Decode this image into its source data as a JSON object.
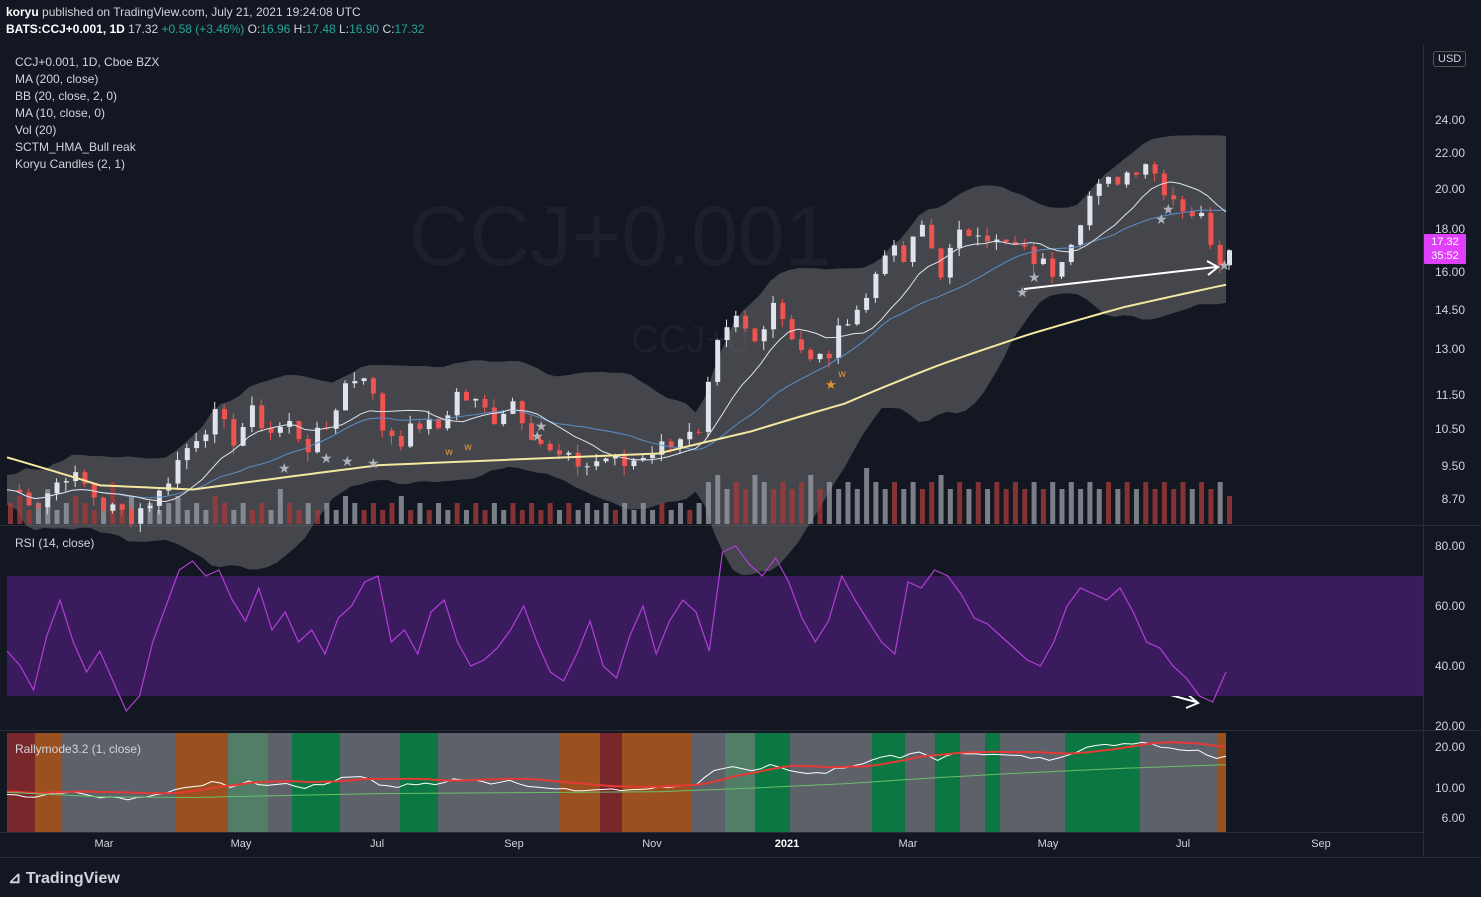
{
  "header": {
    "author": "koryu",
    "published": "published on TradingView.com, July 21, 2021 19:24:08 UTC",
    "symbol": "BATS:CCJ+0.001, 1D",
    "last": "17.32",
    "change": "+0.58 (+3.46%)",
    "o_label": "O:",
    "o": "16.96",
    "h_label": "H:",
    "h": "17.48",
    "l_label": "L:",
    "l": "16.90",
    "c_label": "C:",
    "c": "17.32"
  },
  "legend": [
    "CCJ+0.001, 1D, Cboe BZX",
    "MA (200, close)",
    "BB (20, close, 2, 0)",
    "MA (10, close, 0)",
    "Vol (20)",
    "SCTM_HMA_Bull reak",
    "Koryu Candles (2, 1)"
  ],
  "watermark": "CCJ+0.001",
  "watermark_small": "CCJ+0",
  "currency": "USD",
  "price_badge": {
    "price": "17.32",
    "countdown": "35:52"
  },
  "rsi_label": "RSI (14, close)",
  "rally_label": "Rallymode3.2 (1, close)",
  "brand": "TradingView",
  "colors": {
    "up": "#e0e3eb",
    "down": "#ef5350",
    "ma200": "#f3e8a0",
    "bb": "#808080",
    "ma10": "#e0e3eb",
    "rsi": "#b13fd6",
    "rsi_band": "#3a1b5e",
    "accent": "#e040fb"
  },
  "chart_data": [
    {
      "type": "candlestick",
      "scale": "log",
      "x_ticks": [
        "Mar",
        "May",
        "Jul",
        "Sep",
        "Nov",
        "2021",
        "Mar",
        "May",
        "Jul",
        "Sep"
      ],
      "y_ticks": [
        "24.00",
        "22.00",
        "20.00",
        "18.00",
        "16.00",
        "14.50",
        "13.00",
        "11.50",
        "10.50",
        "9.50",
        "8.70"
      ],
      "ylim": [
        8.2,
        30
      ],
      "close_path": [
        [
          0,
          8.9
        ],
        [
          3,
          8.6
        ],
        [
          6,
          9.3
        ],
        [
          8,
          9.0
        ],
        [
          10,
          8.5
        ],
        [
          13,
          8.3
        ],
        [
          16,
          8.8
        ],
        [
          18,
          9.6
        ],
        [
          20,
          10.3
        ],
        [
          22,
          10.8
        ],
        [
          24,
          10.2
        ],
        [
          26,
          10.9
        ],
        [
          28,
          10.4
        ],
        [
          30,
          10.6
        ],
        [
          32,
          10.0
        ],
        [
          34,
          10.5
        ],
        [
          36,
          11.8
        ],
        [
          38,
          12.2
        ],
        [
          40,
          10.5
        ],
        [
          42,
          10.2
        ],
        [
          44,
          10.6
        ],
        [
          46,
          10.5
        ],
        [
          48,
          11.5
        ],
        [
          50,
          11.2
        ],
        [
          52,
          10.8
        ],
        [
          54,
          11.3
        ],
        [
          56,
          10.4
        ],
        [
          58,
          9.8
        ],
        [
          60,
          9.6
        ],
        [
          62,
          9.5
        ],
        [
          64,
          9.7
        ],
        [
          66,
          9.5
        ],
        [
          68,
          9.8
        ],
        [
          70,
          10.0
        ],
        [
          72,
          10.3
        ],
        [
          74,
          10.2
        ],
        [
          76,
          13.0
        ],
        [
          78,
          14.0
        ],
        [
          80,
          13.2
        ],
        [
          82,
          14.8
        ],
        [
          84,
          13.5
        ],
        [
          86,
          12.5
        ],
        [
          88,
          12.8
        ],
        [
          90,
          14.2
        ],
        [
          92,
          14.8
        ],
        [
          94,
          17.0
        ],
        [
          96,
          16.4
        ],
        [
          98,
          18.0
        ],
        [
          100,
          16.0
        ],
        [
          102,
          17.5
        ],
        [
          104,
          18.0
        ],
        [
          106,
          17.2
        ],
        [
          108,
          17.0
        ],
        [
          110,
          16.5
        ],
        [
          112,
          16.0
        ],
        [
          114,
          17.5
        ],
        [
          116,
          19.5
        ],
        [
          118,
          20.2
        ],
        [
          120,
          20.8
        ],
        [
          122,
          21.5
        ],
        [
          124,
          20.0
        ],
        [
          126,
          19.0
        ],
        [
          128,
          18.4
        ],
        [
          130,
          16.5
        ],
        [
          131,
          17.32
        ]
      ],
      "ma200_path": [
        [
          0,
          9.7
        ],
        [
          10,
          9.0
        ],
        [
          20,
          8.9
        ],
        [
          30,
          9.2
        ],
        [
          40,
          9.5
        ],
        [
          50,
          9.6
        ],
        [
          60,
          9.7
        ],
        [
          70,
          9.8
        ],
        [
          80,
          10.4
        ],
        [
          90,
          11.2
        ],
        [
          100,
          12.4
        ],
        [
          110,
          13.5
        ],
        [
          120,
          14.5
        ],
        [
          131,
          15.4
        ]
      ],
      "volume": [
        0.3,
        0.4,
        0.2,
        0.3,
        0.5,
        0.2,
        0.3,
        0.4,
        0.3,
        0.2,
        0.3,
        0.6,
        0.3,
        0.4,
        0.2,
        0.3,
        0.2,
        0.3,
        0.4,
        0.2,
        0.3,
        0.2,
        0.4,
        0.3,
        0.2,
        0.3,
        0.2,
        0.3,
        0.2,
        0.5,
        0.3,
        0.2,
        0.3,
        0.2,
        0.3,
        0.2,
        0.4,
        0.3,
        0.2,
        0.3,
        0.2,
        0.3,
        0.4,
        0.2,
        0.3,
        0.2,
        0.3,
        0.2,
        0.3,
        0.2,
        0.3,
        0.2,
        0.3,
        0.2,
        0.3,
        0.2,
        0.3,
        0.2,
        0.3,
        0.2,
        0.3,
        0.2,
        0.3,
        0.2,
        0.3,
        0.2,
        0.3,
        0.2,
        0.3,
        0.2,
        0.3,
        0.2,
        0.3,
        0.2,
        0.3,
        0.6,
        0.7,
        0.5,
        0.6,
        0.5,
        0.7,
        0.6,
        0.5,
        0.6,
        0.5,
        0.6,
        0.7,
        0.5,
        0.6,
        0.5,
        0.6,
        0.5,
        0.8,
        0.6,
        0.5,
        0.6,
        0.5,
        0.6,
        0.5,
        0.6,
        0.7,
        0.5,
        0.6,
        0.5,
        0.6,
        0.5,
        0.6,
        0.5,
        0.6,
        0.5,
        0.6,
        0.5,
        0.6,
        0.5,
        0.6,
        0.5,
        0.6,
        0.5,
        0.6,
        0.5,
        0.6,
        0.5,
        0.6,
        0.5,
        0.6,
        0.5,
        0.6,
        0.5,
        0.6,
        0.5,
        0.6,
        0.4
      ]
    },
    {
      "type": "line",
      "name": "RSI (14, close)",
      "y_ticks": [
        "80.00",
        "60.00",
        "40.00",
        "20.00"
      ],
      "ylim": [
        15,
        85
      ],
      "band": [
        30,
        70
      ],
      "values": [
        45,
        40,
        32,
        50,
        62,
        48,
        38,
        45,
        35,
        25,
        30,
        48,
        60,
        72,
        75,
        70,
        72,
        62,
        55,
        66,
        52,
        58,
        48,
        52,
        44,
        56,
        60,
        68,
        70,
        48,
        52,
        44,
        58,
        62,
        48,
        40,
        42,
        46,
        52,
        60,
        48,
        38,
        35,
        44,
        55,
        40,
        36,
        50,
        60,
        44,
        55,
        62,
        58,
        45,
        78,
        80,
        74,
        70,
        76,
        68,
        56,
        48,
        55,
        70,
        62,
        55,
        48,
        44,
        68,
        66,
        72,
        70,
        64,
        56,
        54,
        50,
        46,
        42,
        40,
        48,
        60,
        66,
        64,
        62,
        66,
        58,
        48,
        46,
        40,
        36,
        30,
        28,
        38
      ]
    },
    {
      "type": "line",
      "name": "Rallymode3.2 (1, close)",
      "y_ticks": [
        "20.00",
        "10.00",
        "6.00"
      ],
      "ylim": [
        5,
        22
      ]
    }
  ]
}
